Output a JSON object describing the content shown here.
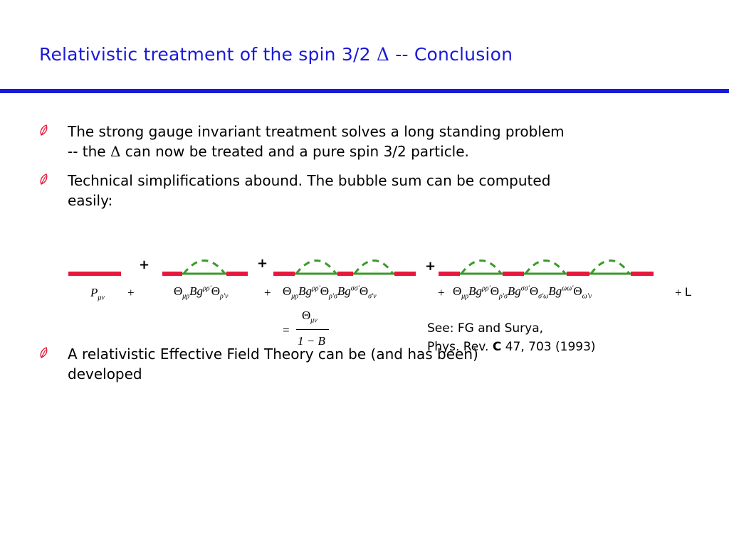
{
  "title": {
    "main": "Relativistic treatment of the spin 3/2",
    "symbol": "Δ",
    "suffix": "-- Conclusion"
  },
  "bullets": [
    {
      "icon": "leaf-bullet-icon",
      "lines": [
        "The strong gauge invariant treatment solves a long standing problem",
        "-- the",
        "Δ",
        "can now be treated and a pure spin 3/2 particle."
      ]
    },
    {
      "icon": "leaf-bullet-icon",
      "lines": [
        "Technical simplifications abound.  The bubble sum can be computed",
        "easily:"
      ]
    },
    {
      "icon": "leaf-bullet-icon",
      "lines": [
        "A relativistic Effective Field Theory can be (and has been)",
        "developed"
      ]
    }
  ],
  "diagram": {
    "plus_sign": "+",
    "colors": {
      "propagator": "#e8173c",
      "self_energy": "#3a9a2a"
    }
  },
  "equation": {
    "P": "P",
    "mu_nu": "μν",
    "plus": "+",
    "Theta": "Θ",
    "mu_rho": "μρ",
    "B": "B",
    "g": "g",
    "rho_rho": "ρρ'",
    "rho_nu": "ρ'ν",
    "rho_sigma": "ρ'σ",
    "sigma_sigma": "σσ'",
    "sigma_nu": "σ'ν",
    "sigma_omega": "σ'ω",
    "omega_omega": "ωω'",
    "omega_nu": "ω'ν",
    "ellipsis": "L",
    "equals": "=",
    "num_theta": "Θ",
    "num_sub": "μν",
    "denominator": "1 − B"
  },
  "reference": {
    "line1": "See:  FG and Surya,",
    "line2_journal": "Phys. Rev.",
    "line2_vol_letter": "C",
    "line2_rest": "47, 703 (1993)"
  }
}
